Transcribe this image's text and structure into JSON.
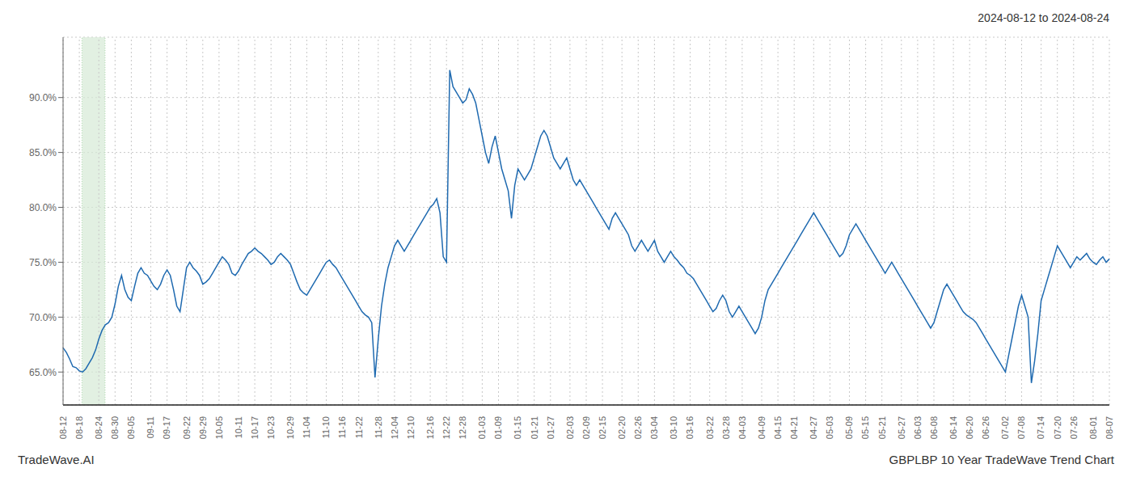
{
  "chart_data": {
    "type": "line",
    "title": "2024-08-12 to 2024-08-24",
    "annotations": [
      "TradeWave.AI",
      "GBPLBP 10 Year TradeWave Trend Chart"
    ],
    "color": "#1f6ab0",
    "grid": true,
    "ylim": [
      62.0,
      95.5
    ],
    "yticks": [
      {
        "value": 65.0,
        "label": "65.0%"
      },
      {
        "value": 70.0,
        "label": "70.0%"
      },
      {
        "value": 75.0,
        "label": "75.0%"
      },
      {
        "value": 80.0,
        "label": "80.0%"
      },
      {
        "value": 85.0,
        "label": "85.0%"
      },
      {
        "value": 90.0,
        "label": "90.0%"
      }
    ],
    "highlight": {
      "start": 5.814,
      "end": 12.92,
      "color": "#d6ead6"
    },
    "categories": [
      "08-12",
      null,
      null,
      null,
      null,
      "08-18",
      null,
      null,
      null,
      null,
      null,
      "08-24",
      null,
      null,
      null,
      null,
      "08-30",
      null,
      null,
      null,
      null,
      "09-05",
      null,
      null,
      null,
      null,
      null,
      "09-11",
      null,
      null,
      null,
      null,
      "09-17",
      null,
      null,
      null,
      null,
      null,
      "09-22",
      null,
      null,
      null,
      null,
      "09-29",
      null,
      null,
      null,
      null,
      "10-05",
      null,
      null,
      null,
      null,
      null,
      "10-11",
      null,
      null,
      null,
      null,
      "10-17",
      null,
      null,
      null,
      null,
      "10-23",
      null,
      null,
      null,
      null,
      null,
      "10-29",
      null,
      null,
      null,
      null,
      "11-04",
      null,
      null,
      null,
      null,
      null,
      "11-10",
      null,
      null,
      null,
      null,
      "11-16",
      null,
      null,
      null,
      null,
      "11-22",
      null,
      null,
      null,
      null,
      null,
      "11-28",
      null,
      null,
      null,
      null,
      "12-04",
      null,
      null,
      null,
      null,
      "12-10",
      null,
      null,
      null,
      null,
      null,
      "12-16",
      null,
      null,
      null,
      null,
      "12-22",
      null,
      null,
      null,
      null,
      "12-28",
      null,
      null,
      null,
      null,
      null,
      "01-03",
      null,
      null,
      null,
      null,
      "01-09",
      null,
      null,
      null,
      null,
      null,
      "01-15",
      null,
      null,
      null,
      null,
      "01-21",
      null,
      null,
      null,
      null,
      "01-27",
      null,
      null,
      null,
      null,
      null,
      "02-03",
      null,
      null,
      null,
      null,
      "02-09",
      null,
      null,
      null,
      null,
      "02-15",
      null,
      null,
      null,
      null,
      null,
      "02-20",
      null,
      null,
      null,
      null,
      "02-26",
      null,
      null,
      null,
      null,
      "03-04",
      null,
      null,
      null,
      null,
      null,
      "03-10",
      null,
      null,
      null,
      null,
      "03-16",
      null,
      null,
      null,
      null,
      null,
      "03-22",
      null,
      null,
      null,
      null,
      "03-28",
      null,
      null,
      null,
      null,
      "04-03",
      null,
      null,
      null,
      null,
      null,
      "04-09",
      null,
      null,
      null,
      null,
      "04-15",
      null,
      null,
      null,
      null,
      "04-21",
      null,
      null,
      null,
      null,
      null,
      "04-27",
      null,
      null,
      null,
      null,
      "05-03",
      null,
      null,
      null,
      null,
      null,
      "05-09",
      null,
      null,
      null,
      null,
      "05-15",
      null,
      null,
      null,
      null,
      "05-21",
      null,
      null,
      null,
      null,
      null,
      "05-27",
      null,
      null,
      null,
      null,
      "06-03",
      null,
      null,
      null,
      null,
      "06-08",
      null,
      null,
      null,
      null,
      null,
      "06-14",
      null,
      null,
      null,
      null,
      "06-20",
      null,
      null,
      null,
      null,
      "06-26",
      null,
      null,
      null,
      null,
      null,
      "07-02",
      null,
      null,
      null,
      null,
      "07-08",
      null,
      null,
      null,
      null,
      null,
      "07-14",
      null,
      null,
      null,
      null,
      "07-20",
      null,
      null,
      null,
      null,
      "07-26",
      null,
      null,
      null,
      null,
      null,
      "08-01",
      null,
      null,
      null,
      null,
      "08-07"
    ],
    "values": [
      67.2,
      66.8,
      66.2,
      65.5,
      65.4,
      65.1,
      65.0,
      65.3,
      65.8,
      66.3,
      67.0,
      68.0,
      68.8,
      69.3,
      69.5,
      70.0,
      71.2,
      72.8,
      73.8,
      72.5,
      71.8,
      71.5,
      72.8,
      74.0,
      74.5,
      74.0,
      73.8,
      73.3,
      72.8,
      72.5,
      73.0,
      73.8,
      74.3,
      73.8,
      72.5,
      71.0,
      70.5,
      72.5,
      74.5,
      75.0,
      74.5,
      74.2,
      73.8,
      73.0,
      73.2,
      73.5,
      74.0,
      74.5,
      75.0,
      75.5,
      75.2,
      74.8,
      74.0,
      73.8,
      74.2,
      74.8,
      75.3,
      75.8,
      76.0,
      76.3,
      76.0,
      75.8,
      75.5,
      75.2,
      74.8,
      75.0,
      75.5,
      75.8,
      75.5,
      75.2,
      74.8,
      74.0,
      73.2,
      72.5,
      72.2,
      72.0,
      72.5,
      73.0,
      73.5,
      74.0,
      74.5,
      75.0,
      75.2,
      74.8,
      74.5,
      74.0,
      73.5,
      73.0,
      72.5,
      72.0,
      71.5,
      71.0,
      70.5,
      70.2,
      70.0,
      69.5,
      64.5,
      68.0,
      71.0,
      73.0,
      74.5,
      75.5,
      76.5,
      77.0,
      76.5,
      76.0,
      76.5,
      77.0,
      77.5,
      78.0,
      78.5,
      79.0,
      79.5,
      80.0,
      80.3,
      80.8,
      79.5,
      75.5,
      75.0,
      92.5,
      91.0,
      90.5,
      90.0,
      89.5,
      89.8,
      90.8,
      90.3,
      89.5,
      88.0,
      86.5,
      85.0,
      84.0,
      85.5,
      86.5,
      85.0,
      83.5,
      82.5,
      81.5,
      79.0,
      82.0,
      83.5,
      83.0,
      82.5,
      83.0,
      83.5,
      84.5,
      85.5,
      86.5,
      87.0,
      86.5,
      85.5,
      84.5,
      84.0,
      83.5,
      84.0,
      84.5,
      83.5,
      82.5,
      82.0,
      82.5,
      82.0,
      81.5,
      81.0,
      80.5,
      80.0,
      79.5,
      79.0,
      78.5,
      78.0,
      79.0,
      79.5,
      79.0,
      78.5,
      78.0,
      77.5,
      76.5,
      76.0,
      76.5,
      77.0,
      76.5,
      76.0,
      76.5,
      77.0,
      76.0,
      75.5,
      75.0,
      75.5,
      76.0,
      75.5,
      75.2,
      74.8,
      74.5,
      74.0,
      73.8,
      73.5,
      73.0,
      72.5,
      72.0,
      71.5,
      71.0,
      70.5,
      70.8,
      71.5,
      72.0,
      71.5,
      70.5,
      70.0,
      70.5,
      71.0,
      70.5,
      70.0,
      69.5,
      69.0,
      68.5,
      69.0,
      70.0,
      71.5,
      72.5,
      73.0,
      73.5,
      74.0,
      74.5,
      75.0,
      75.5,
      76.0,
      76.5,
      77.0,
      77.5,
      78.0,
      78.5,
      79.0,
      79.5,
      79.0,
      78.5,
      78.0,
      77.5,
      77.0,
      76.5,
      76.0,
      75.5,
      75.8,
      76.5,
      77.5,
      78.0,
      78.5,
      78.0,
      77.5,
      77.0,
      76.5,
      76.0,
      75.5,
      75.0,
      74.5,
      74.0,
      74.5,
      75.0,
      74.5,
      74.0,
      73.5,
      73.0,
      72.5,
      72.0,
      71.5,
      71.0,
      70.5,
      70.0,
      69.5,
      69.0,
      69.5,
      70.5,
      71.5,
      72.5,
      73.0,
      72.5,
      72.0,
      71.5,
      71.0,
      70.5,
      70.2,
      70.0,
      69.8,
      69.5,
      69.0,
      68.5,
      68.0,
      67.5,
      67.0,
      66.5,
      66.0,
      65.5,
      65.0,
      66.5,
      68.0,
      69.5,
      71.0,
      72.0,
      71.0,
      70.0,
      64.0,
      66.0,
      68.5,
      71.5,
      72.5,
      73.5,
      74.5,
      75.5,
      76.5,
      76.0,
      75.5,
      75.0,
      74.5,
      75.0,
      75.5,
      75.2,
      75.5,
      75.8,
      75.3,
      75.0,
      74.8,
      75.2,
      75.5,
      75.0,
      75.3
    ]
  }
}
